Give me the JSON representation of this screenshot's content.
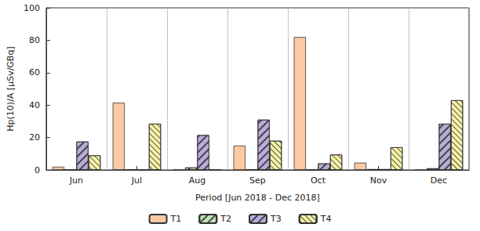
{
  "chart_data": {
    "type": "bar",
    "x_label": "Period [Jun 2018 - Dec 2018]",
    "y_label": "Hp(10)/A [µSv/GBq]",
    "categories": [
      "Jun",
      "Jul",
      "Aug",
      "Sep",
      "Oct",
      "Nov",
      "Dec"
    ],
    "series": [
      {
        "name": "T1",
        "color": "#fdc9a2",
        "values": [
          2,
          41.5,
          0,
          15,
          82,
          4.5,
          0
        ]
      },
      {
        "name": "T2",
        "color": "#bfe3b4",
        "values": [
          0,
          0,
          1.5,
          0,
          0,
          0.5,
          1
        ]
      },
      {
        "name": "T3",
        "color": "#b9acd8",
        "values": [
          17.5,
          0,
          21.5,
          31,
          4,
          0.5,
          28.5
        ]
      },
      {
        "name": "T4",
        "color": "#f7f3a8",
        "values": [
          9,
          28.5,
          0,
          18,
          9.5,
          14,
          43
        ]
      }
    ],
    "ylim": [
      0,
      100
    ],
    "yticks": [
      0,
      20,
      40,
      60,
      80,
      100
    ],
    "grid": true,
    "legend": "bottom"
  }
}
